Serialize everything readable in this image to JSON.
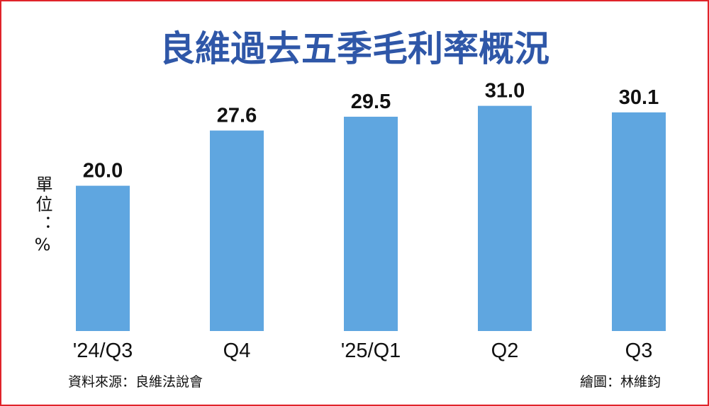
{
  "chart_data": {
    "type": "bar",
    "title": "良維過去五季毛利率概況",
    "unit_label": "單位：%",
    "categories": [
      "'24/Q3",
      "Q4",
      "'25/Q1",
      "Q2",
      "Q3"
    ],
    "values": [
      20.0,
      27.6,
      29.5,
      31.0,
      30.1
    ],
    "value_labels": [
      "20.0",
      "27.6",
      "29.5",
      "31.0",
      "30.1"
    ],
    "color": "#5fa6e0",
    "source": "資料來源：良維法說會",
    "credit": "繪圖：林維鈞"
  }
}
